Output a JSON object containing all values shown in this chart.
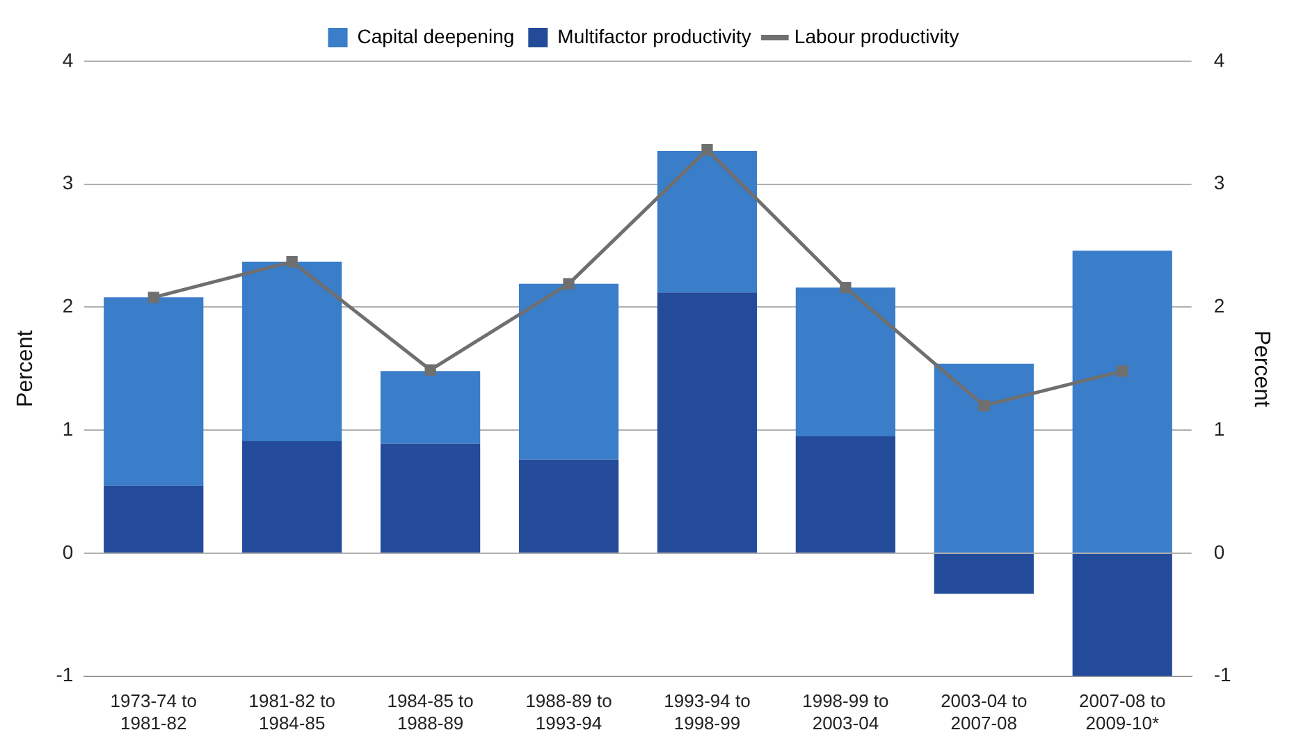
{
  "chart_data": {
    "type": "bar",
    "stacked": true,
    "ylabel": "Percent",
    "y2label": "Percent",
    "categories": [
      "1973-74 to\n1981-82",
      "1981-82 to\n1984-85",
      "1984-85 to\n1988-89",
      "1988-89 to\n1993-94",
      "1993-94 to\n1998-99",
      "1998-99 to\n2003-04",
      "2003-04 to\n2007-08",
      "2007-08 to\n2009-10*"
    ],
    "series": [
      {
        "name": "Multifactor productivity",
        "color": "#234b9a",
        "values": [
          0.55,
          0.91,
          0.89,
          0.76,
          2.12,
          0.95,
          -0.33,
          -1.0
        ]
      },
      {
        "name": "Capital deepening",
        "color": "#3a7dc9",
        "values": [
          1.53,
          1.46,
          0.59,
          1.43,
          1.15,
          1.21,
          1.54,
          2.46
        ]
      },
      {
        "name": "Labour productivity",
        "type": "line",
        "color": "#6f6f6f",
        "marker": "square",
        "values": [
          2.08,
          2.37,
          1.49,
          2.19,
          3.28,
          2.16,
          1.2,
          1.48
        ]
      }
    ],
    "ylim": [
      -1,
      4
    ],
    "yticks": [
      -1,
      0,
      1,
      2,
      3,
      4
    ],
    "y2lim": [
      -1,
      4
    ],
    "y2ticks": [
      -1,
      0,
      1,
      2,
      3,
      4
    ],
    "grid": "y",
    "legend": "top"
  }
}
